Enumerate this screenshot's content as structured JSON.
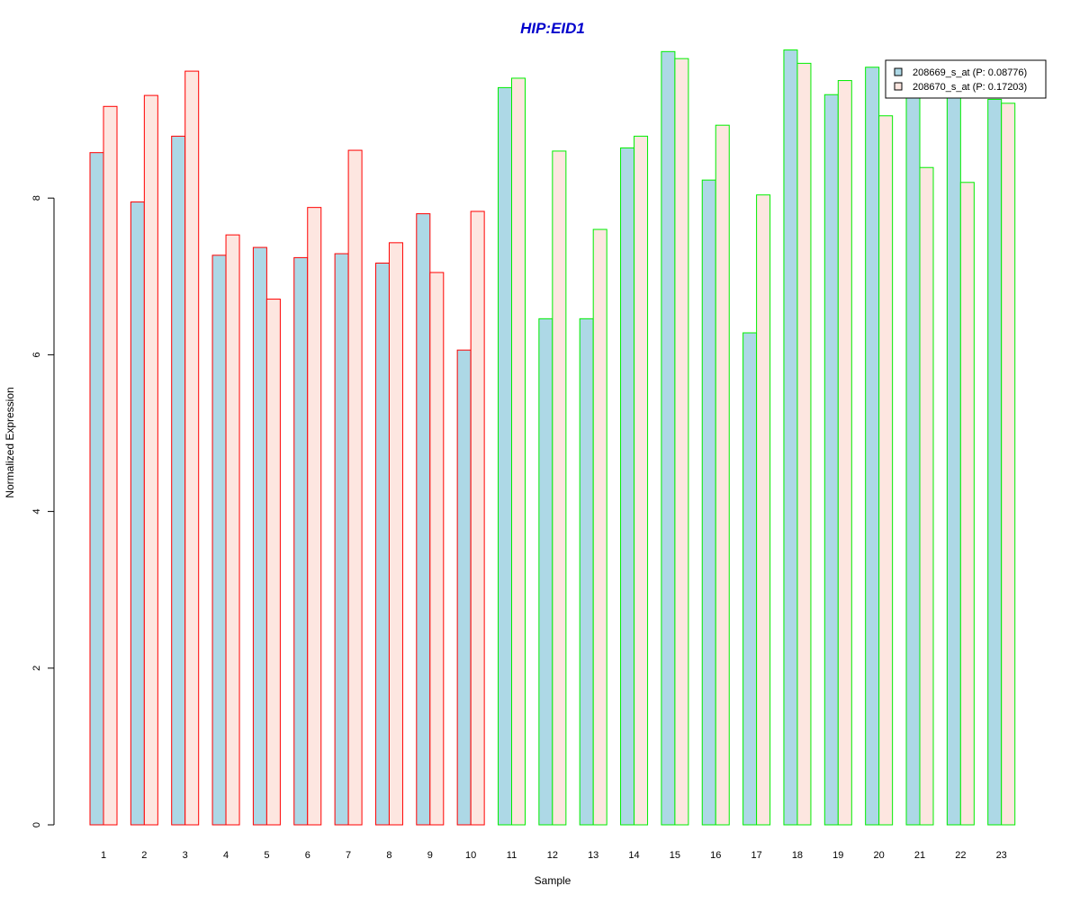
{
  "chart_data": {
    "type": "bar",
    "title": "HIP:EID1",
    "xlabel": "Sample",
    "ylabel": "Normalized Expression",
    "categories": [
      "1",
      "2",
      "3",
      "4",
      "5",
      "6",
      "7",
      "8",
      "9",
      "10",
      "11",
      "12",
      "13",
      "14",
      "15",
      "16",
      "17",
      "18",
      "19",
      "20",
      "21",
      "22",
      "23"
    ],
    "y_ticks": [
      "0",
      "2",
      "4",
      "6",
      "8"
    ],
    "ylim": [
      0,
      10
    ],
    "grid": false,
    "legend_position": "top-right",
    "series": [
      {
        "name": "208669_s_at (P: 0.08776)",
        "fill": "#add8e6",
        "values": [
          8.58,
          7.95,
          8.79,
          7.27,
          7.37,
          7.24,
          7.29,
          7.17,
          7.8,
          6.06,
          9.41,
          6.46,
          6.46,
          8.64,
          9.87,
          8.23,
          6.28,
          9.89,
          9.32,
          9.67,
          9.35,
          9.35,
          9.26
        ]
      },
      {
        "name": "208670_s_at (P: 0.17203)",
        "fill": "#fde6e0",
        "values": [
          9.17,
          9.31,
          9.62,
          7.53,
          6.71,
          7.88,
          8.61,
          7.43,
          7.05,
          7.83,
          9.53,
          8.6,
          7.6,
          8.79,
          9.78,
          8.93,
          8.04,
          9.72,
          9.5,
          9.05,
          8.39,
          8.2,
          9.21
        ]
      }
    ],
    "sample_groups": [
      {
        "samples": [
          1,
          10
        ],
        "border_color": "#ff0000"
      },
      {
        "samples": [
          11,
          23
        ],
        "border_color": "#00ee00"
      }
    ],
    "colors": {
      "title": "#0000cc",
      "axis": "#000000",
      "legend_border": "#000000"
    }
  }
}
